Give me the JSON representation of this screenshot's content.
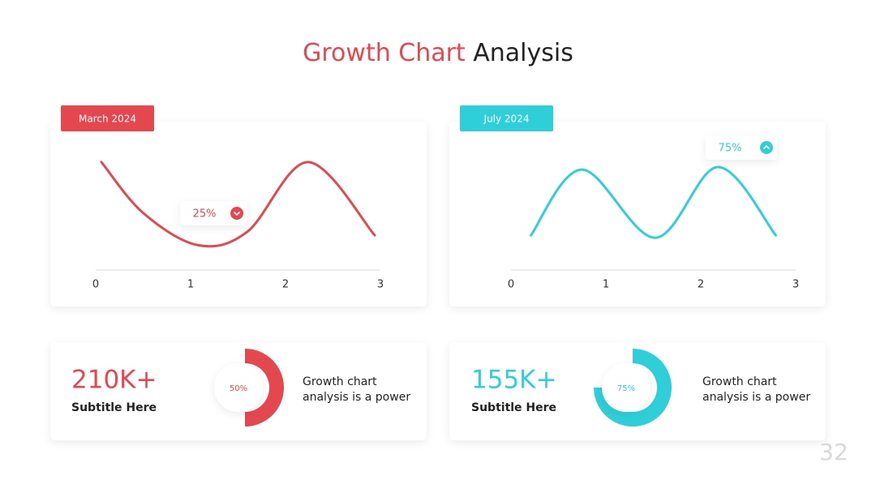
{
  "title": {
    "accent": "Growth Chart",
    "rest": "Analysis"
  },
  "page_number": "32",
  "chart_data": [
    {
      "type": "line",
      "title": "March 2024",
      "color": "#e5474f",
      "annotation": "25%",
      "x": [
        0.06,
        0.5,
        1.08,
        1.6,
        2.24,
        2.94
      ],
      "values": [
        87,
        46,
        20,
        31,
        87,
        28
      ],
      "xlim": [
        0,
        3
      ],
      "xticks": [
        0,
        1,
        2,
        3
      ],
      "ylim": [
        0,
        100
      ]
    },
    {
      "type": "line",
      "title": "July 2024",
      "color": "#2ecfd9",
      "annotation": "75%",
      "x": [
        0.21,
        0.75,
        1.52,
        2.18,
        2.79
      ],
      "values": [
        28,
        81,
        26,
        83,
        28
      ],
      "xlim": [
        0,
        3
      ],
      "xticks": [
        0,
        1,
        2,
        3
      ],
      "ylim": [
        0,
        100
      ]
    },
    {
      "type": "donut",
      "color": "#e5474f",
      "values": [
        50
      ],
      "value_labels": [
        "50%"
      ],
      "stat": "210K+",
      "subtitle": "Subtitle Here",
      "description": [
        "Growth chart",
        "analysis is a power"
      ]
    },
    {
      "type": "donut",
      "color": "#2ecfd9",
      "values": [
        75
      ],
      "value_labels": [
        "75%"
      ],
      "stat": "155K+",
      "subtitle": "Subtitle Here",
      "description": [
        "Growth chart",
        "analysis is a power"
      ]
    }
  ]
}
